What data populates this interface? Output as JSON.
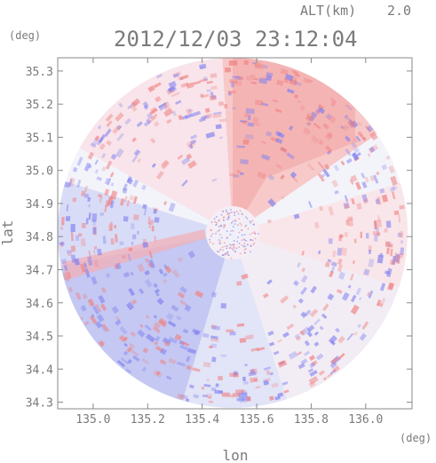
{
  "chart_data": {
    "type": "heatmap",
    "altitude_label": "ALT(km)",
    "altitude_value": "2.0",
    "timestamp": "2012/12/03 23:12:04",
    "xlabel": "lon",
    "ylabel": "lat",
    "x_unit": "(deg)",
    "y_unit": "(deg)",
    "x_ticks": [
      "135.0",
      "135.2",
      "135.4",
      "135.6",
      "135.8",
      "136.0"
    ],
    "y_ticks": [
      "35.3",
      "35.2",
      "35.1",
      "35.0",
      "34.9",
      "34.8",
      "34.7",
      "34.6",
      "34.5",
      "34.4",
      "34.3"
    ],
    "x_tick_values": [
      135.0,
      135.2,
      135.4,
      135.6,
      135.8,
      136.0
    ],
    "y_tick_values": [
      35.3,
      35.2,
      35.1,
      35.0,
      34.9,
      34.8,
      34.7,
      34.6,
      34.5,
      34.4,
      34.3
    ],
    "xlim": [
      134.87,
      136.17
    ],
    "ylim": [
      34.28,
      35.34
    ],
    "radar_center": [
      135.52,
      34.81
    ],
    "colors": {
      "positive": "#f08080",
      "negative": "#8080f0",
      "neutral": "#f4f4fa",
      "axis": "#888888"
    }
  }
}
